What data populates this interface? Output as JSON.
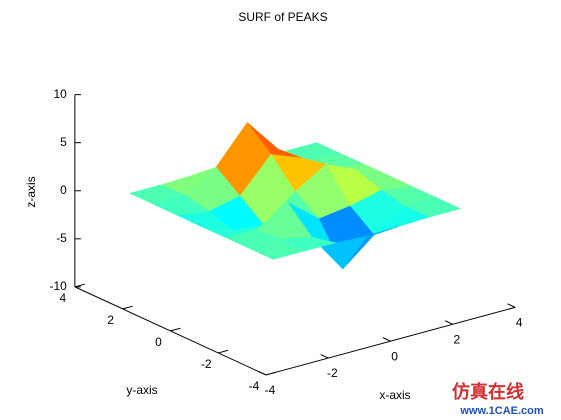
{
  "chart_data": {
    "type": "surface",
    "title": "SURF of PEAKS",
    "x_label": "x-axis",
    "y_label": "y-axis",
    "z_label": "z-axis",
    "x": [
      -3,
      -2,
      -1,
      0,
      1,
      2,
      3
    ],
    "y": [
      -3,
      -2,
      -1,
      0,
      1,
      2,
      3
    ],
    "z": [
      [
        0,
        0,
        -0.03,
        -0.25,
        -0.11,
        0,
        0
      ],
      [
        0,
        0.05,
        -0.59,
        -4.76,
        -2.1,
        -0.06,
        0
      ],
      [
        0,
        -0.13,
        1.85,
        -0.72,
        -0.27,
        0.5,
        0
      ],
      [
        -0.04,
        -1.33,
        -1.65,
        0.98,
        2.94,
        1.41,
        0.03
      ],
      [
        -0.01,
        -0.48,
        0.23,
        3.69,
        2.43,
        0.58,
        0.01
      ],
      [
        0,
        0.08,
        2.1,
        5.86,
        2.21,
        0.13,
        0
      ],
      [
        0,
        0,
        0.11,
        0.3,
        0.11,
        0,
        0
      ]
    ],
    "xlim": [
      -4,
      4
    ],
    "ylim": [
      -4,
      4
    ],
    "zlim": [
      -10,
      10
    ],
    "xticks": [
      -4,
      -2,
      0,
      2,
      4
    ],
    "yticks": [
      -4,
      -2,
      0,
      2,
      4
    ],
    "zticks": [
      -10,
      -5,
      0,
      5,
      10
    ],
    "view": [
      -37.5,
      30
    ],
    "colormap": "jet",
    "watermark": "仿真在线",
    "watermark_url": "www.1CAE.com"
  }
}
